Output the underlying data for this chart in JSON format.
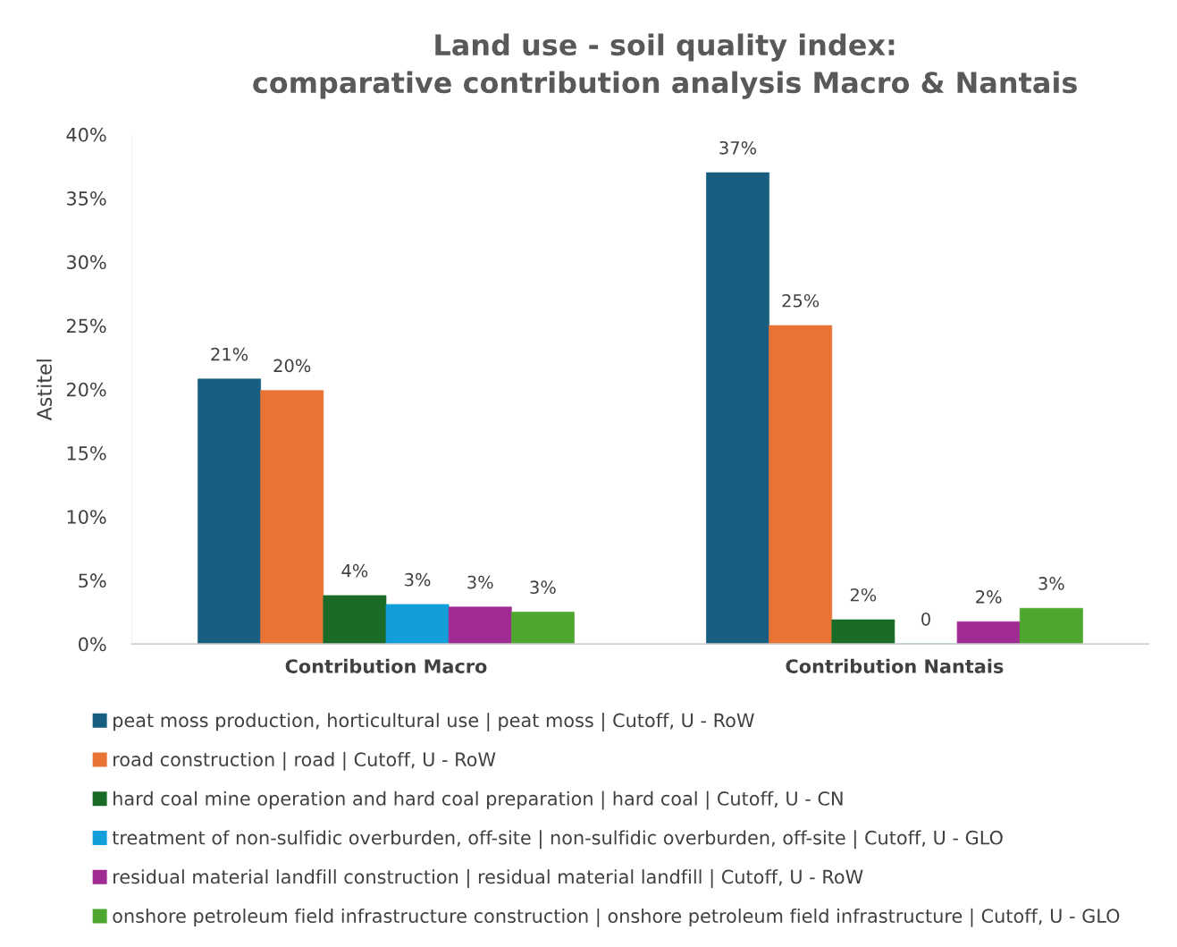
{
  "chart_data": {
    "type": "bar",
    "title": "Land use - soil quality index:\ncomparative contribution analysis Macro & Nantais",
    "ylabel": "Astitel",
    "categories": [
      "Contribution Macro",
      "Contribution Nantais"
    ],
    "series": [
      {
        "name": "peat moss production, horticultural use | peat moss | Cutoff, U - RoW",
        "color": "#175e80",
        "values": [
          20.8,
          37.0
        ],
        "value_labels": [
          "21%",
          "37%"
        ]
      },
      {
        "name": "road construction | road | Cutoff, U - RoW",
        "color": "#e97333",
        "values": [
          19.9,
          25.0
        ],
        "value_labels": [
          "20%",
          "25%"
        ]
      },
      {
        "name": "hard coal mine operation and hard coal preparation | hard coal | Cutoff, U - CN",
        "color": "#1a6b26",
        "values": [
          3.8,
          1.9
        ],
        "value_labels": [
          "4%",
          "2%"
        ]
      },
      {
        "name": "treatment of non-sulfidic overburden, off-site | non-sulfidic overburden, off-site | Cutoff, U - GLO",
        "color": "#129fd9",
        "values": [
          3.1,
          0
        ],
        "value_labels": [
          "3%",
          "0"
        ]
      },
      {
        "name": "residual material landfill construction | residual material landfill | Cutoff, U - RoW",
        "color": "#a02b93",
        "values": [
          2.9,
          1.75
        ],
        "value_labels": [
          "3%",
          "2%"
        ]
      },
      {
        "name": "onshore petroleum field infrastructure construction | onshore petroleum field infrastructure | Cutoff, U - GLO",
        "color": "#4ea72e",
        "values": [
          2.5,
          2.8
        ],
        "value_labels": [
          "3%",
          "3%"
        ]
      }
    ],
    "ylim": [
      0,
      40
    ],
    "yticks": [
      {
        "value": 0,
        "label": "0%"
      },
      {
        "value": 5,
        "label": "5%"
      },
      {
        "value": 10,
        "label": "10%"
      },
      {
        "value": 15,
        "label": "15%"
      },
      {
        "value": 20,
        "label": "20%"
      },
      {
        "value": 25,
        "label": "25%"
      },
      {
        "value": 30,
        "label": "30%"
      },
      {
        "value": 35,
        "label": "35%"
      },
      {
        "value": 40,
        "label": "40%"
      }
    ],
    "grid": false,
    "legend": "bottom"
  }
}
